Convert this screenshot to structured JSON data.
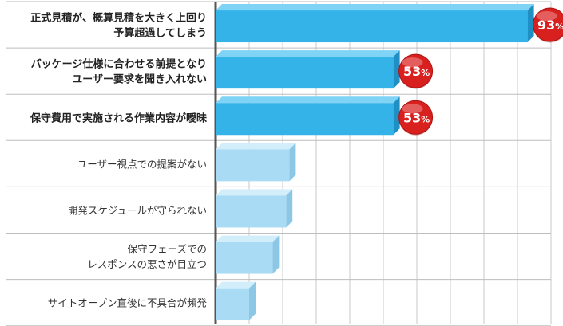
{
  "chart_data": {
    "type": "bar",
    "orientation": "horizontal",
    "xlim": [
      0,
      100
    ],
    "grid": true,
    "colors": {
      "highlight": "#33b3e8",
      "highlight_side": "#1f8fc4",
      "highlight_top": "#7fd3f5",
      "normal": "#a9dcf4",
      "normal_side": "#8cc7e6",
      "normal_top": "#d2eefb",
      "badge": "#d8201f"
    },
    "categories": [
      {
        "label_lines": [
          "正式見積が、概算見積を大きく上回り",
          "予算超過してしまう"
        ],
        "value": 93,
        "percent_label": "93",
        "percent_unit": "%",
        "highlight": true
      },
      {
        "label_lines": [
          "パッケージ仕様に合わせる前提となり",
          "ユーザー要求を聞き入れない"
        ],
        "value": 53,
        "percent_label": "53",
        "percent_unit": "%",
        "highlight": true
      },
      {
        "label_lines": [
          "保守費用で実施される作業内容が曖昧"
        ],
        "value": 53,
        "percent_label": "53",
        "percent_unit": "%",
        "highlight": true
      },
      {
        "label_lines": [
          "ユーザー視点での提案がない"
        ],
        "value": 22,
        "highlight": false
      },
      {
        "label_lines": [
          "開発スケジュールが守られない"
        ],
        "value": 21,
        "highlight": false
      },
      {
        "label_lines": [
          "保守フェーズでの",
          "レスポンスの悪さが目立つ"
        ],
        "value": 17,
        "highlight": false
      },
      {
        "label_lines": [
          "サイトオープン直後に不具合が頻発"
        ],
        "value": 10,
        "highlight": false
      }
    ]
  }
}
